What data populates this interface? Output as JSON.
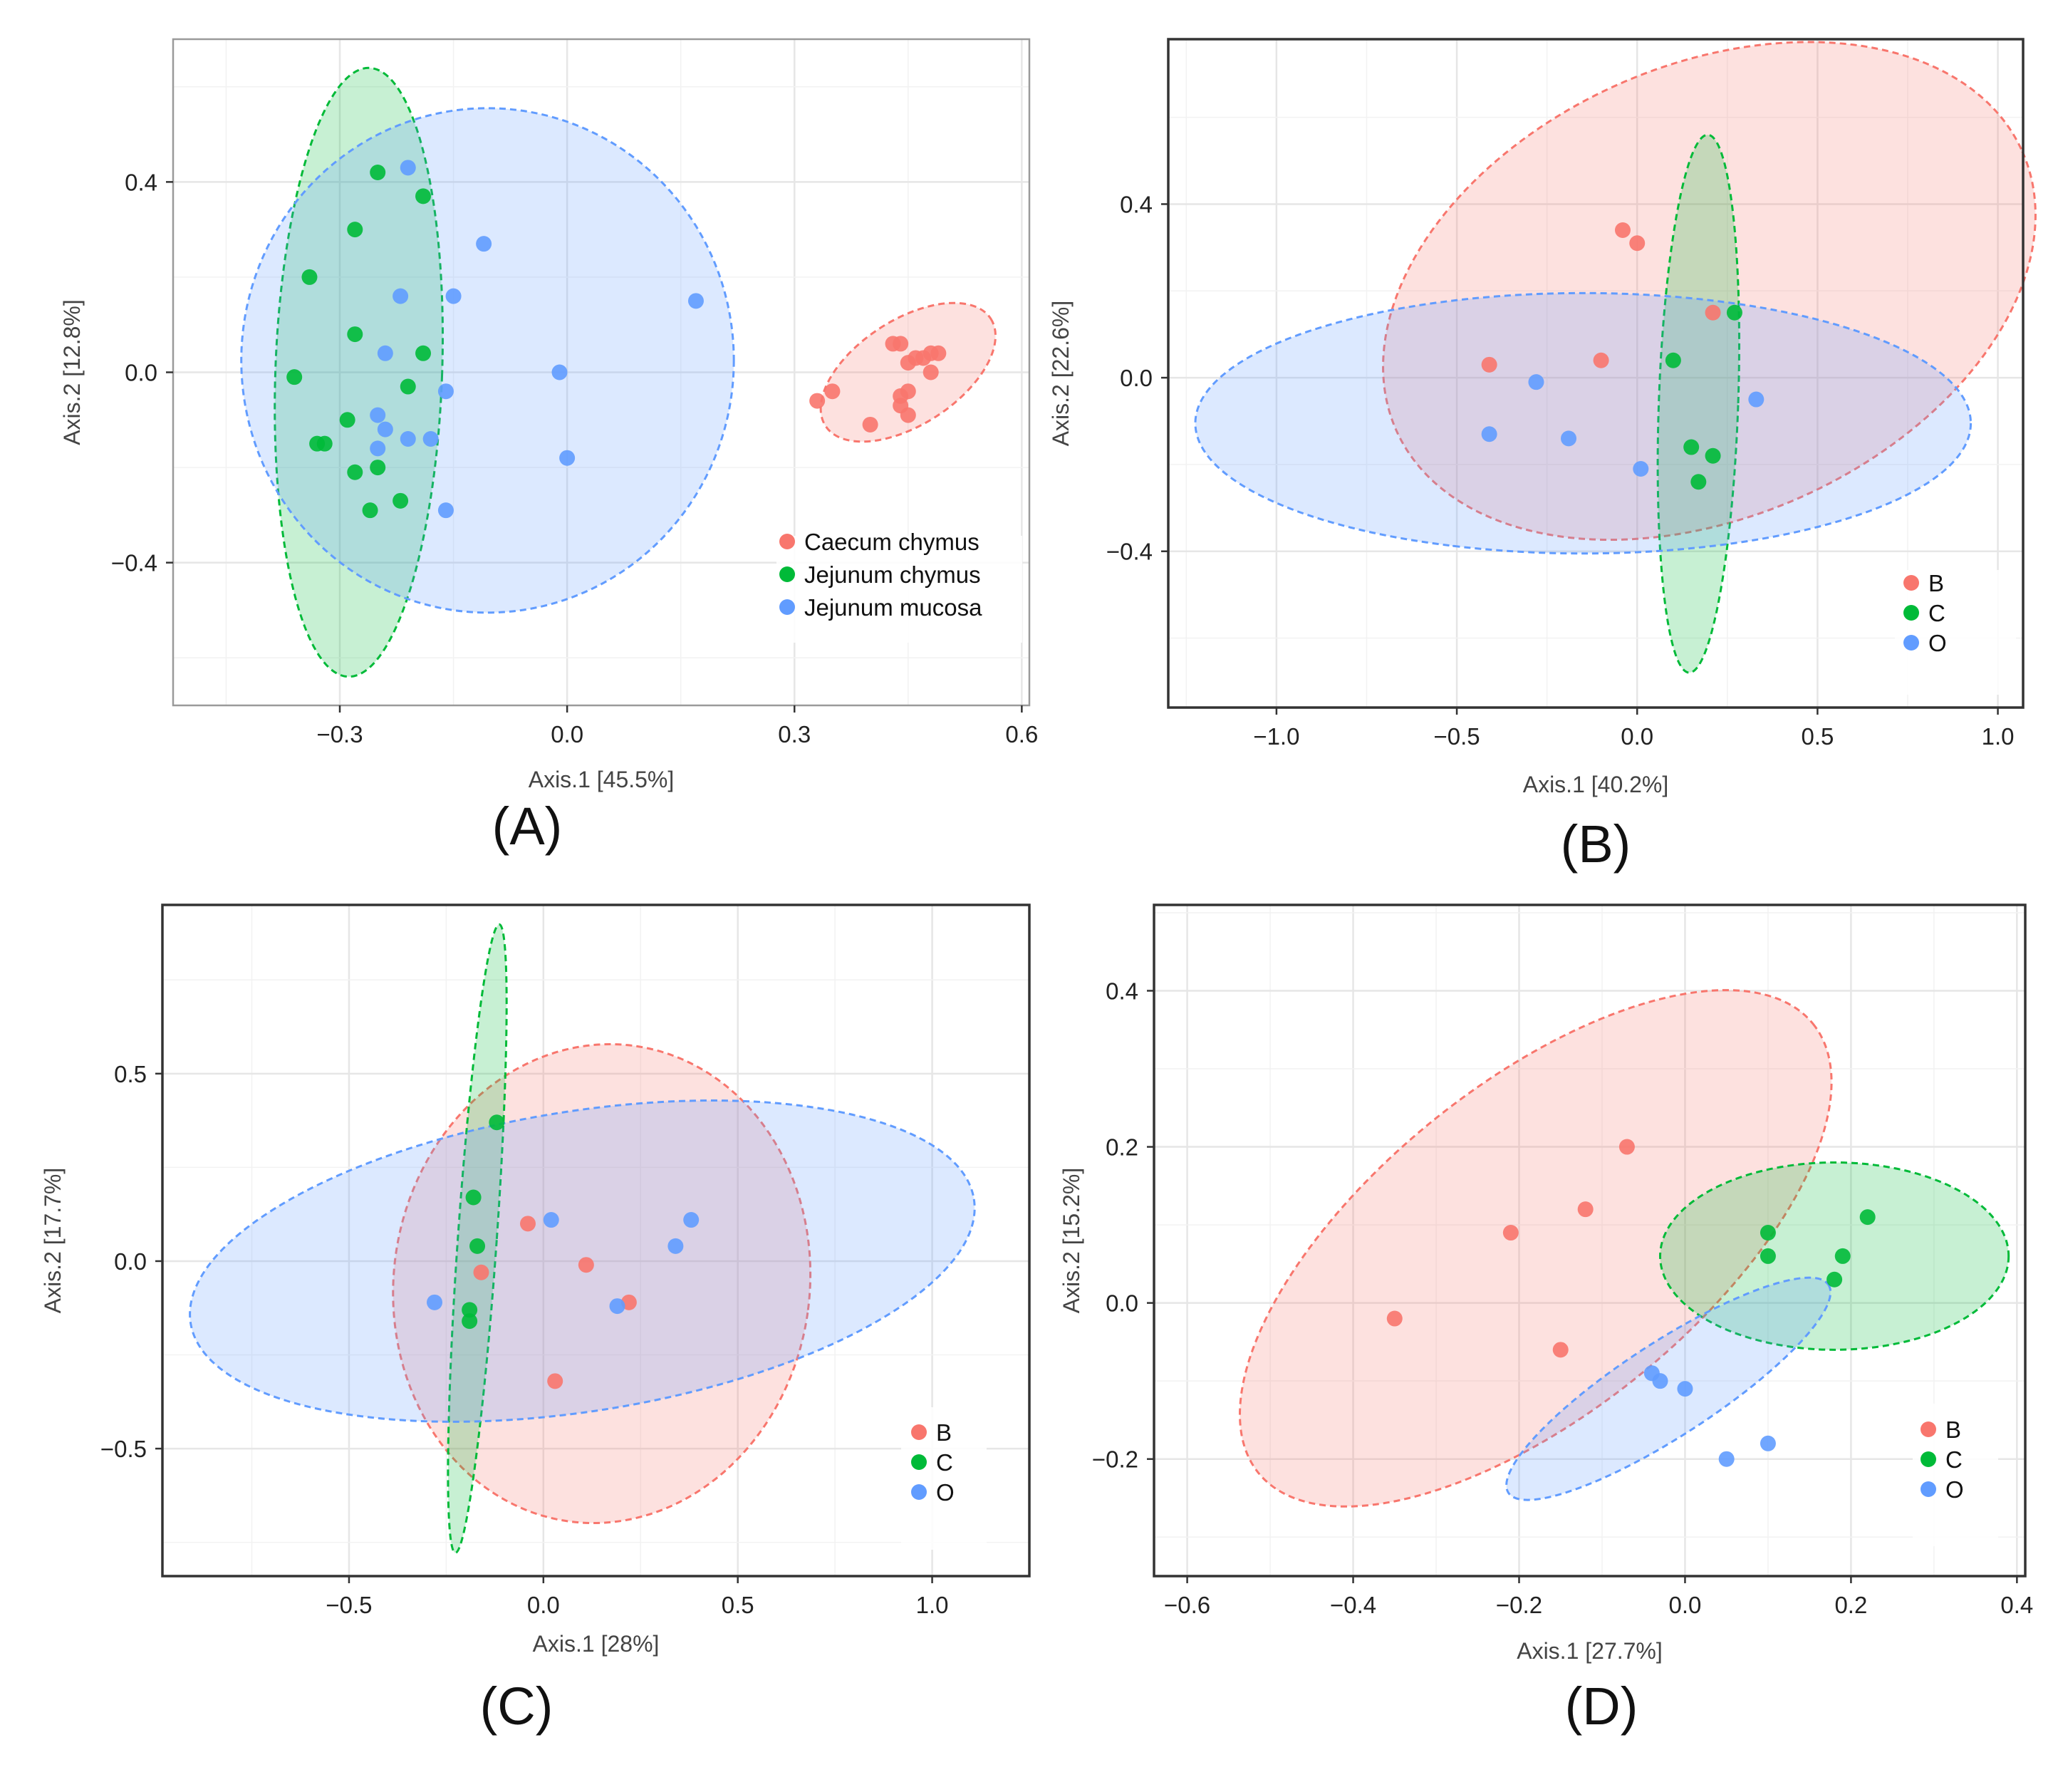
{
  "colors": {
    "red": "#f8766d",
    "green": "#00ba38",
    "blue": "#619cff"
  },
  "chart_data": [
    {
      "type": "scatter",
      "panel_label": "(A)",
      "xlabel": "Axis.1 [45.5%]",
      "ylabel": "Axis.2 [12.8%]",
      "xlim": [
        -0.52,
        0.61
      ],
      "ylim": [
        -0.7,
        0.7
      ],
      "xticks": [
        {
          "v": -0.3,
          "t": "−0.3"
        },
        {
          "v": 0.0,
          "t": "0.0"
        },
        {
          "v": 0.3,
          "t": "0.3"
        },
        {
          "v": 0.6,
          "t": "0.6"
        }
      ],
      "yticks": [
        {
          "v": 0.4,
          "t": "0.4"
        },
        {
          "v": 0.0,
          "t": "0.0"
        },
        {
          "v": -0.4,
          "t": "−0.4"
        }
      ],
      "grid": true,
      "legend_position": "bottom-right",
      "series": [
        {
          "name": "Caecum chymus",
          "color": "red",
          "points": [
            [
              0.33,
              -0.06
            ],
            [
              0.35,
              -0.04
            ],
            [
              0.4,
              -0.11
            ],
            [
              0.43,
              0.06
            ],
            [
              0.44,
              0.06
            ],
            [
              0.45,
              0.02
            ],
            [
              0.46,
              0.03
            ],
            [
              0.47,
              0.03
            ],
            [
              0.48,
              0.04
            ],
            [
              0.49,
              0.04
            ],
            [
              0.44,
              -0.05
            ],
            [
              0.45,
              -0.04
            ],
            [
              0.44,
              -0.07
            ],
            [
              0.45,
              -0.09
            ],
            [
              0.48,
              0.0
            ]
          ],
          "ellipse": {
            "cx": 0.45,
            "cy": 0.0,
            "rx": 0.13,
            "ry": 0.11,
            "angle": 33
          }
        },
        {
          "name": "Jejunum chymus",
          "color": "green",
          "points": [
            [
              -0.25,
              0.42
            ],
            [
              -0.19,
              0.37
            ],
            [
              -0.28,
              0.3
            ],
            [
              -0.34,
              0.2
            ],
            [
              -0.28,
              0.08
            ],
            [
              -0.19,
              0.04
            ],
            [
              -0.36,
              -0.01
            ],
            [
              -0.21,
              -0.03
            ],
            [
              -0.29,
              -0.1
            ],
            [
              -0.33,
              -0.15
            ],
            [
              -0.32,
              -0.15
            ],
            [
              -0.28,
              -0.21
            ],
            [
              -0.25,
              -0.2
            ],
            [
              -0.22,
              -0.27
            ],
            [
              -0.26,
              -0.29
            ]
          ],
          "ellipse": {
            "cx": -0.275,
            "cy": 0.0,
            "rx": 0.11,
            "ry": 0.64,
            "angle": -2
          }
        },
        {
          "name": "Jejunum mucosa",
          "color": "blue",
          "points": [
            [
              -0.21,
              0.43
            ],
            [
              -0.11,
              0.27
            ],
            [
              -0.22,
              0.16
            ],
            [
              -0.15,
              0.16
            ],
            [
              0.17,
              0.15
            ],
            [
              -0.24,
              0.04
            ],
            [
              -0.01,
              0.0
            ],
            [
              -0.16,
              -0.04
            ],
            [
              -0.25,
              -0.09
            ],
            [
              -0.24,
              -0.12
            ],
            [
              -0.21,
              -0.14
            ],
            [
              -0.18,
              -0.14
            ],
            [
              -0.25,
              -0.16
            ],
            [
              0.0,
              -0.18
            ],
            [
              -0.16,
              -0.29
            ]
          ],
          "ellipse": {
            "cx": -0.105,
            "cy": 0.025,
            "rx": 0.325,
            "ry": 0.53,
            "angle": 0
          }
        }
      ]
    },
    {
      "type": "scatter",
      "panel_label": "(B)",
      "xlabel": "Axis.1 [40.2%]",
      "ylabel": "Axis.2 [22.6%]",
      "xlim": [
        -1.3,
        1.07
      ],
      "ylim": [
        -0.76,
        0.78
      ],
      "xticks": [
        {
          "v": -1.0,
          "t": "−1.0"
        },
        {
          "v": -0.5,
          "t": "−0.5"
        },
        {
          "v": 0.0,
          "t": "0.0"
        },
        {
          "v": 0.5,
          "t": "0.5"
        },
        {
          "v": 1.0,
          "t": "1.0"
        }
      ],
      "yticks": [
        {
          "v": 0.4,
          "t": "0.4"
        },
        {
          "v": 0.0,
          "t": "0.0"
        },
        {
          "v": -0.4,
          "t": "−0.4"
        }
      ],
      "grid": true,
      "legend_position": "bottom-right",
      "series": [
        {
          "name": "B",
          "color": "red",
          "points": [
            [
              -0.04,
              0.34
            ],
            [
              0.0,
              0.31
            ],
            [
              0.21,
              0.15
            ],
            [
              -0.41,
              0.03
            ],
            [
              -0.1,
              0.04
            ]
          ],
          "ellipse": {
            "cx": 0.2,
            "cy": 0.2,
            "rx": 0.95,
            "ry": 0.52,
            "angle": 24
          }
        },
        {
          "name": "C",
          "color": "green",
          "points": [
            [
              0.27,
              0.15
            ],
            [
              0.1,
              0.04
            ],
            [
              0.15,
              -0.16
            ],
            [
              0.21,
              -0.18
            ],
            [
              0.17,
              -0.24
            ]
          ],
          "ellipse": {
            "cx": 0.17,
            "cy": -0.06,
            "rx": 0.11,
            "ry": 0.62,
            "angle": -2
          }
        },
        {
          "name": "O",
          "color": "blue",
          "points": [
            [
              -0.28,
              -0.01
            ],
            [
              0.33,
              -0.05
            ],
            [
              -0.41,
              -0.13
            ],
            [
              -0.19,
              -0.14
            ],
            [
              0.01,
              -0.21
            ]
          ],
          "ellipse": {
            "cx": -0.15,
            "cy": -0.105,
            "rx": 1.075,
            "ry": 0.3,
            "angle": 0
          }
        }
      ]
    },
    {
      "type": "scatter",
      "panel_label": "(C)",
      "xlabel": "Axis.1 [28%]",
      "ylabel": "Axis.2 [17.7%]",
      "xlim": [
        -0.98,
        1.25
      ],
      "ylim": [
        -0.84,
        0.95
      ],
      "xticks": [
        {
          "v": -0.5,
          "t": "−0.5"
        },
        {
          "v": 0.0,
          "t": "0.0"
        },
        {
          "v": 0.5,
          "t": "0.5"
        },
        {
          "v": 1.0,
          "t": "1.0"
        }
      ],
      "yticks": [
        {
          "v": 0.5,
          "t": "0.5"
        },
        {
          "v": 0.0,
          "t": "0.0"
        },
        {
          "v": -0.5,
          "t": "−0.5"
        }
      ],
      "grid": true,
      "legend_position": "bottom-right",
      "series": [
        {
          "name": "B",
          "color": "red",
          "points": [
            [
              -0.04,
              0.1
            ],
            [
              0.11,
              -0.01
            ],
            [
              -0.16,
              -0.03
            ],
            [
              0.22,
              -0.11
            ],
            [
              0.03,
              -0.32
            ]
          ],
          "ellipse": {
            "cx": 0.15,
            "cy": -0.06,
            "rx": 0.535,
            "ry": 0.64,
            "angle": -8
          }
        },
        {
          "name": "C",
          "color": "green",
          "points": [
            [
              -0.12,
              0.37
            ],
            [
              -0.18,
              0.17
            ],
            [
              -0.17,
              0.04
            ],
            [
              -0.19,
              -0.13
            ],
            [
              -0.19,
              -0.16
            ]
          ],
          "ellipse": {
            "cx": -0.17,
            "cy": 0.06,
            "rx": 0.05,
            "ry": 0.84,
            "angle": -4
          }
        },
        {
          "name": "O",
          "color": "blue",
          "points": [
            [
              0.02,
              0.11
            ],
            [
              0.38,
              0.11
            ],
            [
              0.34,
              0.04
            ],
            [
              -0.28,
              -0.11
            ],
            [
              0.19,
              -0.12
            ]
          ],
          "ellipse": {
            "cx": 0.1,
            "cy": 0.0,
            "rx": 1.02,
            "ry": 0.4,
            "angle": 9
          }
        }
      ]
    },
    {
      "type": "scatter",
      "panel_label": "(D)",
      "xlabel": "Axis.1 [27.7%]",
      "ylabel": "Axis.2 [15.2%]",
      "xlim": [
        -0.64,
        0.41
      ],
      "ylim": [
        -0.35,
        0.51
      ],
      "xticks": [
        {
          "v": -0.6,
          "t": "−0.6"
        },
        {
          "v": -0.4,
          "t": "−0.4"
        },
        {
          "v": -0.2,
          "t": "−0.2"
        },
        {
          "v": 0.0,
          "t": "0.0"
        },
        {
          "v": 0.2,
          "t": "0.2"
        },
        {
          "v": 0.4,
          "t": "0.4"
        }
      ],
      "yticks": [
        {
          "v": 0.4,
          "t": "0.4"
        },
        {
          "v": 0.2,
          "t": "0.2"
        },
        {
          "v": 0.0,
          "t": "0.0"
        },
        {
          "v": -0.2,
          "t": "−0.2"
        }
      ],
      "grid": true,
      "legend_position": "bottom-right",
      "series": [
        {
          "name": "B",
          "color": "red",
          "points": [
            [
              -0.07,
              0.2
            ],
            [
              -0.12,
              0.12
            ],
            [
              -0.21,
              0.09
            ],
            [
              -0.35,
              -0.02
            ],
            [
              -0.15,
              -0.06
            ]
          ],
          "ellipse": {
            "cx": -0.18,
            "cy": 0.07,
            "rx": 0.43,
            "ry": 0.21,
            "angle": 39
          }
        },
        {
          "name": "C",
          "color": "green",
          "points": [
            [
              0.22,
              0.11
            ],
            [
              0.1,
              0.09
            ],
            [
              0.1,
              0.06
            ],
            [
              0.19,
              0.06
            ],
            [
              0.18,
              0.03
            ]
          ],
          "ellipse": {
            "cx": 0.18,
            "cy": 0.06,
            "rx": 0.21,
            "ry": 0.12,
            "angle": 0
          }
        },
        {
          "name": "O",
          "color": "blue",
          "points": [
            [
              -0.04,
              -0.09
            ],
            [
              -0.03,
              -0.1
            ],
            [
              0.0,
              -0.11
            ],
            [
              0.1,
              -0.18
            ],
            [
              0.05,
              -0.2
            ]
          ],
          "ellipse": {
            "cx": -0.02,
            "cy": -0.11,
            "rx": 0.23,
            "ry": 0.06,
            "angle": 33
          }
        }
      ]
    }
  ]
}
